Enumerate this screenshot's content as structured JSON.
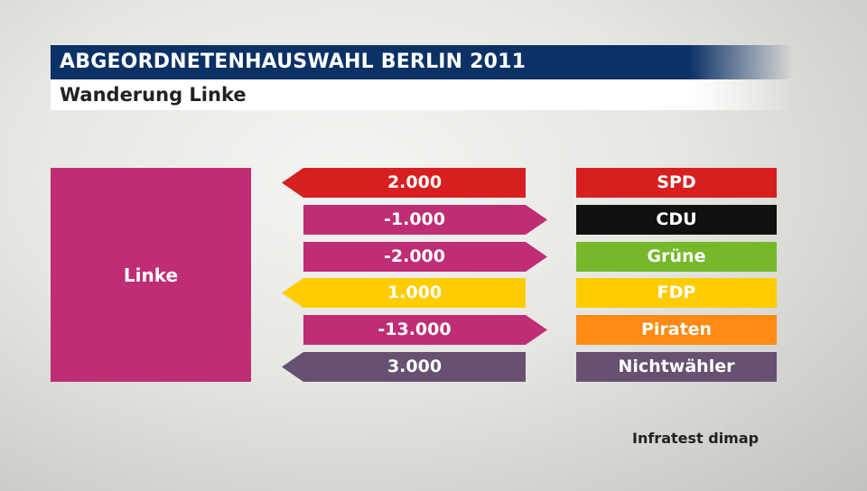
{
  "header": {
    "title": "ABGEORDNETENHAUSWAHL BERLIN 2011",
    "subtitle": "Wanderung Linke"
  },
  "source_party": {
    "label": "Linke",
    "color": "#bf2d74"
  },
  "chart_data": {
    "type": "voter-migration",
    "title": "ABGEORDNETENHAUSWAHL BERLIN 2011",
    "subtitle": "Wanderung Linke",
    "source_party": "Linke",
    "flows": [
      {
        "party": "SPD",
        "value": "2.000",
        "direction": "to-source",
        "arrow_color": "#d71f1f",
        "party_color": "#d71f1f"
      },
      {
        "party": "CDU",
        "value": "-1.000",
        "direction": "from-source",
        "arrow_color": "#bf2d74",
        "party_color": "#111111"
      },
      {
        "party": "Grüne",
        "value": "-2.000",
        "direction": "from-source",
        "arrow_color": "#bf2d74",
        "party_color": "#76b82a"
      },
      {
        "party": "FDP",
        "value": "1.000",
        "direction": "to-source",
        "arrow_color": "#ffcc00",
        "party_color": "#ffcc00"
      },
      {
        "party": "Piraten",
        "value": "-13.000",
        "direction": "from-source",
        "arrow_color": "#bf2d74",
        "party_color": "#ff8a14"
      },
      {
        "party": "Nichtwähler",
        "value": "3.000",
        "direction": "to-source",
        "arrow_color": "#665270",
        "party_color": "#665270"
      }
    ]
  },
  "footer": {
    "source": "Infratest dimap"
  }
}
